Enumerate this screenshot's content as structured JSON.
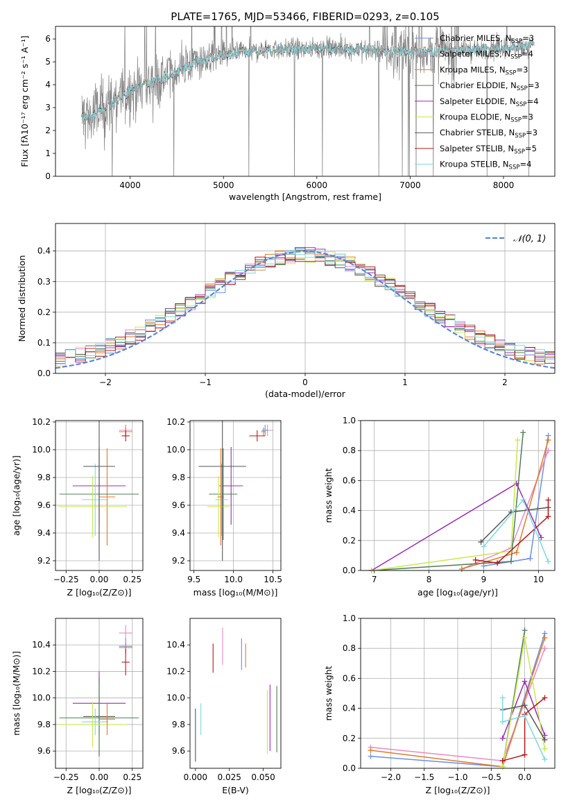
{
  "figure": {
    "title": "PLATE=1765, MJD=53466, FIBERID=0293, z=0.105"
  },
  "colors": {
    "Chabrier MILES": "#6c8ee0",
    "Salpeter MILES": "#e889c2",
    "Kroupa MILES": "#e07a2a",
    "Chabrier ELODIE": "#4f7d55",
    "Salpeter ELODIE": "#9b2bb4",
    "Kroupa ELODIE": "#c9e84f",
    "Chabrier STELIB": "#555555",
    "Salpeter STELIB": "#b5161c",
    "Kroupa STELIB": "#7fd8de",
    "data": "#808080",
    "gaussian": "#5b87d6",
    "grid": "#b0b0b0"
  },
  "chart_data": [
    {
      "id": "spectrum",
      "type": "line",
      "xlabel": "wavelength [Angstrom, rest frame]",
      "ylabel": "Flux [fλ10⁻¹⁷ erg cm⁻² s⁻¹ A⁻¹]",
      "xlim": [
        3200,
        8550
      ],
      "ylim": [
        0,
        6.55
      ],
      "xticks": [
        4000,
        5000,
        6000,
        7000,
        8000
      ],
      "yticks": [
        0,
        1,
        2,
        3,
        4,
        5,
        6
      ],
      "grid": false,
      "legend_position": "top-right",
      "legend": [
        {
          "series": "Chabrier MILES",
          "label": "Chabrier MILES, N",
          "sub": "SSP",
          "value": "=3"
        },
        {
          "series": "Salpeter MILES",
          "label": "Salpeter MILES, N",
          "sub": "SSP",
          "value": "=4"
        },
        {
          "series": "Kroupa MILES",
          "label": "Kroupa MILES, N",
          "sub": "SSP",
          "value": "=3"
        },
        {
          "series": "Chabrier ELODIE",
          "label": "Chabrier ELODIE, N",
          "sub": "SSP",
          "value": "=3"
        },
        {
          "series": "Salpeter ELODIE",
          "label": "Salpeter ELODIE, N",
          "sub": "SSP",
          "value": "=4"
        },
        {
          "series": "Kroupa ELODIE",
          "label": "Kroupa ELODIE, N",
          "sub": "SSP",
          "value": "=3"
        },
        {
          "series": "Chabrier STELIB",
          "label": "Chabrier STELIB, N",
          "sub": "SSP",
          "value": "=3"
        },
        {
          "series": "Salpeter STELIB",
          "label": "Salpeter STELIB, N",
          "sub": "SSP",
          "value": "=5"
        },
        {
          "series": "Kroupa STELIB",
          "label": "Kroupa STELIB, N",
          "sub": "SSP",
          "value": "=4"
        }
      ],
      "continuum_knots": [
        [
          3480,
          2.6
        ],
        [
          3600,
          2.6
        ],
        [
          3700,
          2.9
        ],
        [
          3800,
          3.2
        ],
        [
          3900,
          3.5
        ],
        [
          4000,
          3.7
        ],
        [
          4100,
          3.9
        ],
        [
          4300,
          4.2
        ],
        [
          4500,
          4.6
        ],
        [
          4700,
          5.0
        ],
        [
          5000,
          5.3
        ],
        [
          5300,
          5.45
        ],
        [
          5600,
          5.55
        ],
        [
          6000,
          5.6
        ],
        [
          6400,
          5.55
        ],
        [
          6800,
          5.45
        ],
        [
          7200,
          5.45
        ],
        [
          7600,
          5.5
        ],
        [
          8000,
          5.6
        ],
        [
          8300,
          5.75
        ]
      ],
      "spectrum_range": [
        3480,
        8330
      ]
    },
    {
      "id": "residuals",
      "type": "histogram",
      "xlabel": "(data-model)/error",
      "ylabel": "Normed distribution",
      "xlim": [
        -2.5,
        2.5
      ],
      "ylim": [
        0,
        0.49
      ],
      "xticks": [
        -2,
        -1,
        0,
        1,
        2
      ],
      "yticks": [
        0.0,
        0.1,
        0.2,
        0.3,
        0.4
      ],
      "grid": true,
      "legend_position": "top-right",
      "legend_label": "𝒩(0, 1)",
      "reference": {
        "name": "𝒩(0, 1)",
        "mu": 0,
        "sigma": 1
      },
      "bin_start": -2.5,
      "bin_width": 0.1
    },
    {
      "id": "age_vs_z",
      "type": "scatter",
      "xlabel": "Z [log₁₀(Z/Z⊙)]",
      "ylabel": "age  [log₁₀(age/yr)]",
      "xlim": [
        -0.33,
        0.33
      ],
      "ylim": [
        9.13,
        10.21
      ],
      "xticks": [
        -0.25,
        0.0,
        0.25
      ],
      "yticks": [
        9.2,
        9.4,
        9.6,
        9.8,
        10.0,
        10.2
      ],
      "xticklabels": [
        "−0.25",
        "0.00",
        "0.25"
      ],
      "grid": true,
      "points": [
        {
          "series": "Chabrier MILES",
          "x": 0.2,
          "xerr": 0.05,
          "y": 10.14,
          "yerr": 0.04
        },
        {
          "series": "Salpeter MILES",
          "x": 0.2,
          "xerr": 0.05,
          "y": 10.14,
          "yerr": 0.04
        },
        {
          "series": "Kroupa MILES",
          "x": 0.2,
          "xerr": 0.05,
          "y": 10.13,
          "yerr": 0.03
        },
        {
          "series": "Salpeter STELIB",
          "x": 0.2,
          "xerr": 0.03,
          "y": 10.1,
          "yerr": 0.04
        },
        {
          "series": "Salpeter ELODIE",
          "x": 0.0,
          "xerr": 0.2,
          "y": 9.74,
          "yerr": 0.28
        },
        {
          "series": "Kroupa MILES",
          "x": 0.06,
          "xerr": 0.06,
          "y": 9.66,
          "yerr": 0.35
        },
        {
          "series": "Chabrier ELODIE",
          "x": 0.0,
          "xerr": 0.3,
          "y": 9.68,
          "yerr": 0.33
        },
        {
          "series": "Kroupa STELIB",
          "x": -0.03,
          "xerr": 0.1,
          "y": 9.64,
          "yerr": 0.26
        },
        {
          "series": "Kroupa ELODIE",
          "x": -0.05,
          "xerr": 0.26,
          "y": 9.59,
          "yerr": 0.22
        },
        {
          "series": "Chabrier STELIB",
          "x": 0.0,
          "xerr": 0.12,
          "y": 9.88,
          "yerr": 0.68
        }
      ]
    },
    {
      "id": "age_vs_mass",
      "type": "scatter",
      "xlabel": "mass [log₁₀(M/M⊙)]",
      "ylabel": "",
      "xlim": [
        9.45,
        10.6
      ],
      "ylim": [
        9.13,
        10.21
      ],
      "xticks": [
        9.5,
        10.0,
        10.5
      ],
      "yticks": [
        9.2,
        9.4,
        9.6,
        9.8,
        10.0,
        10.2
      ],
      "grid": true,
      "points": [
        {
          "series": "Salpeter MILES",
          "x": 10.43,
          "xerr": 0.07,
          "y": 10.14,
          "yerr": 0.04
        },
        {
          "series": "Chabrier MILES",
          "x": 10.4,
          "xerr": 0.04,
          "y": 10.14,
          "yerr": 0.04
        },
        {
          "series": "Kroupa MILES",
          "x": 10.38,
          "xerr": 0.03,
          "y": 10.13,
          "yerr": 0.03
        },
        {
          "series": "Salpeter STELIB",
          "x": 10.3,
          "xerr": 0.1,
          "y": 10.1,
          "yerr": 0.04
        },
        {
          "series": "Salpeter ELODIE",
          "x": 9.97,
          "xerr": 0.15,
          "y": 9.74,
          "yerr": 0.28
        },
        {
          "series": "Chabrier ELODIE",
          "x": 9.87,
          "xerr": 0.18,
          "y": 9.68,
          "yerr": 0.33
        },
        {
          "series": "Kroupa STELIB",
          "x": 9.85,
          "xerr": 0.08,
          "y": 9.64,
          "yerr": 0.26
        },
        {
          "series": "Kroupa ELODIE",
          "x": 9.81,
          "xerr": 0.14,
          "y": 9.59,
          "yerr": 0.22
        },
        {
          "series": "Kroupa MILES",
          "x": 9.84,
          "xerr": 0.04,
          "y": 9.66,
          "yerr": 0.35
        },
        {
          "series": "Chabrier STELIB",
          "x": 9.86,
          "xerr": 0.3,
          "y": 9.88,
          "yerr": 0.68
        }
      ]
    },
    {
      "id": "weight_vs_age",
      "type": "line",
      "xlabel": "age  [log₁₀(age/yr)]",
      "ylabel": "mass weight",
      "xlim": [
        6.75,
        10.3
      ],
      "ylim": [
        0,
        1.0
      ],
      "xticks": [
        7,
        8,
        9,
        10
      ],
      "yticks": [
        0.0,
        0.2,
        0.4,
        0.6,
        0.8,
        1.0
      ],
      "grid": true,
      "series": [
        {
          "name": "Chabrier MILES",
          "points": [
            [
              9.0,
              0.03
            ],
            [
              9.85,
              0.08
            ],
            [
              10.18,
              0.9
            ]
          ]
        },
        {
          "name": "Salpeter MILES",
          "points": [
            [
              8.6,
              0.01
            ],
            [
              9.5,
              0.15
            ],
            [
              10.18,
              0.8
            ]
          ]
        },
        {
          "name": "Kroupa MILES",
          "points": [
            [
              8.6,
              0.01
            ],
            [
              9.6,
              0.12
            ],
            [
              10.18,
              0.87
            ]
          ]
        },
        {
          "name": "Chabrier ELODIE",
          "points": [
            [
              6.95,
              0.0
            ],
            [
              9.5,
              0.06
            ],
            [
              9.72,
              0.92
            ]
          ]
        },
        {
          "name": "Salpeter ELODIE",
          "points": [
            [
              6.95,
              0.0
            ],
            [
              9.6,
              0.58
            ],
            [
              10.05,
              0.22
            ]
          ]
        },
        {
          "name": "Kroupa ELODIE",
          "points": [
            [
              6.95,
              0.0
            ],
            [
              9.5,
              0.13
            ],
            [
              9.62,
              0.87
            ]
          ]
        },
        {
          "name": "Chabrier STELIB",
          "points": [
            [
              8.95,
              0.19
            ],
            [
              9.5,
              0.39
            ],
            [
              10.18,
              0.42
            ]
          ]
        },
        {
          "name": "Salpeter STELIB",
          "points": [
            [
              8.85,
              0.07
            ],
            [
              9.25,
              0.05
            ],
            [
              10.18,
              0.36
            ],
            [
              10.18,
              0.47
            ]
          ]
        },
        {
          "name": "Kroupa STELIB",
          "points": [
            [
              9.0,
              0.16
            ],
            [
              9.72,
              0.47
            ],
            [
              10.18,
              0.06
            ]
          ]
        }
      ]
    },
    {
      "id": "mass_vs_z",
      "type": "scatter",
      "xlabel": "Z [log₁₀(Z/Z⊙)]",
      "ylabel": "mass [log₁₀(M/M⊙)]",
      "xlim": [
        -0.33,
        0.33
      ],
      "ylim": [
        9.47,
        10.6
      ],
      "xticks": [
        -0.25,
        0.0,
        0.25
      ],
      "yticks": [
        9.6,
        9.8,
        10.0,
        10.2,
        10.4
      ],
      "xticklabels": [
        "−0.25",
        "0.00",
        "0.25"
      ],
      "grid": true,
      "points": [
        {
          "series": "Salpeter MILES",
          "x": 0.2,
          "xerr": 0.05,
          "y": 10.49,
          "yerr": 0.06
        },
        {
          "series": "Chabrier MILES",
          "x": 0.2,
          "xerr": 0.05,
          "y": 10.39,
          "yerr": 0.06
        },
        {
          "series": "Kroupa MILES",
          "x": 0.2,
          "xerr": 0.05,
          "y": 10.38,
          "yerr": 0.04
        },
        {
          "series": "Salpeter STELIB",
          "x": 0.2,
          "xerr": 0.03,
          "y": 10.27,
          "yerr": 0.1
        },
        {
          "series": "Salpeter ELODIE",
          "x": 0.0,
          "xerr": 0.2,
          "y": 9.96,
          "yerr": 0.24
        },
        {
          "series": "Chabrier STELIB",
          "x": 0.0,
          "xerr": 0.12,
          "y": 9.86,
          "yerr": 0.3
        },
        {
          "series": "Chabrier ELODIE",
          "x": 0.0,
          "xerr": 0.3,
          "y": 9.85,
          "yerr": 0.25
        },
        {
          "series": "Kroupa STELIB",
          "x": -0.03,
          "xerr": 0.1,
          "y": 9.82,
          "yerr": 0.1
        },
        {
          "series": "Kroupa ELODIE",
          "x": -0.05,
          "xerr": 0.26,
          "y": 9.8,
          "yerr": 0.17
        },
        {
          "series": "Kroupa MILES",
          "x": 0.06,
          "xerr": 0.06,
          "y": 9.84,
          "yerr": 0.12
        }
      ]
    },
    {
      "id": "mass_vs_ebv",
      "type": "scatter",
      "xlabel": "E(B-V)",
      "ylabel": "",
      "xlim": [
        -0.004,
        0.063
      ],
      "ylim": [
        9.47,
        10.6
      ],
      "xticks": [
        0.0,
        0.025,
        0.05
      ],
      "yticks": [
        9.6,
        9.8,
        10.0,
        10.2,
        10.4
      ],
      "xticklabels": [
        "0.000",
        "0.025",
        "0.050"
      ],
      "grid": false,
      "points": [
        {
          "series": "Salpeter MILES",
          "x": 0.02,
          "xerr": 0,
          "y": 10.39,
          "yerr": 0.14
        },
        {
          "series": "Salpeter STELIB",
          "x": 0.013,
          "xerr": 0,
          "y": 10.3,
          "yerr": 0.11
        },
        {
          "series": "Chabrier MILES",
          "x": 0.034,
          "xerr": 0,
          "y": 10.33,
          "yerr": 0.12
        },
        {
          "series": "Kroupa MILES",
          "x": 0.037,
          "xerr": 0,
          "y": 10.32,
          "yerr": 0.09
        },
        {
          "series": "Kroupa STELIB",
          "x": 0.004,
          "xerr": 0,
          "y": 9.84,
          "yerr": 0.12
        },
        {
          "series": "Chabrier STELIB",
          "x": 0.0,
          "xerr": 0,
          "y": 9.72,
          "yerr": 0.2
        },
        {
          "series": "Kroupa ELODIE",
          "x": 0.053,
          "xerr": 0,
          "y": 9.82,
          "yerr": 0.24
        },
        {
          "series": "Salpeter ELODIE",
          "x": 0.055,
          "xerr": 0,
          "y": 9.85,
          "yerr": 0.25
        },
        {
          "series": "Chabrier ELODIE",
          "x": 0.06,
          "xerr": 0,
          "y": 9.84,
          "yerr": 0.25
        }
      ]
    },
    {
      "id": "weight_vs_z",
      "type": "line",
      "xlabel": "Z [log₁₀(Z/Z⊙)]",
      "ylabel": "mass weight",
      "xlim": [
        -2.45,
        0.45
      ],
      "ylim": [
        0,
        1.0
      ],
      "xticks": [
        -2.0,
        -1.5,
        -1.0,
        -0.5,
        0.0
      ],
      "yticks": [
        0.0,
        0.2,
        0.4,
        0.6,
        0.8,
        1.0
      ],
      "xticklabels": [
        "−2.0",
        "−1.5",
        "−1.0",
        "−0.5",
        "0.0"
      ],
      "grid": true,
      "series": [
        {
          "name": "Chabrier MILES",
          "points": [
            [
              -2.3,
              0.08
            ],
            [
              -0.33,
              0.01
            ],
            [
              0.3,
              0.9
            ]
          ]
        },
        {
          "name": "Salpeter MILES",
          "points": [
            [
              -2.3,
              0.14
            ],
            [
              -0.33,
              0.05
            ],
            [
              0.3,
              0.8
            ]
          ]
        },
        {
          "name": "Kroupa MILES",
          "points": [
            [
              -2.3,
              0.12
            ],
            [
              -0.33,
              0.01
            ],
            [
              0.3,
              0.87
            ]
          ]
        },
        {
          "name": "Chabrier ELODIE",
          "points": [
            [
              -0.33,
              0.01
            ],
            [
              0.0,
              0.92
            ]
          ]
        },
        {
          "name": "Salpeter ELODIE",
          "points": [
            [
              -0.33,
              0.2
            ],
            [
              0.0,
              0.58
            ],
            [
              0.3,
              0.22
            ]
          ]
        },
        {
          "name": "Kroupa ELODIE",
          "points": [
            [
              -0.33,
              0.01
            ],
            [
              0.0,
              0.87
            ],
            [
              0.3,
              0.13
            ]
          ]
        },
        {
          "name": "Chabrier STELIB",
          "points": [
            [
              -0.33,
              0.39
            ],
            [
              0.0,
              0.42
            ],
            [
              0.3,
              0.19
            ]
          ]
        },
        {
          "name": "Salpeter STELIB",
          "points": [
            [
              -0.33,
              0.05
            ],
            [
              0.0,
              0.09
            ],
            [
              0.0,
              0.36
            ],
            [
              0.3,
              0.47
            ]
          ]
        },
        {
          "name": "Kroupa STELIB",
          "points": [
            [
              -0.33,
              0.47
            ],
            [
              -0.33,
              0.31
            ],
            [
              0.0,
              0.35
            ],
            [
              0.3,
              0.06
            ]
          ]
        }
      ]
    }
  ]
}
